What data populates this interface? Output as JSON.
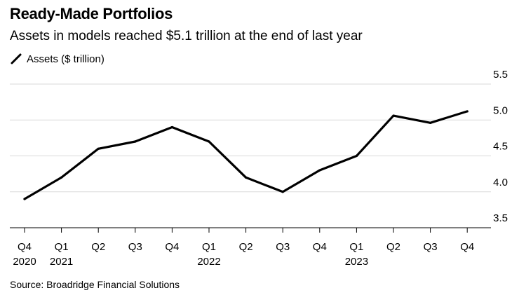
{
  "chart_data": {
    "type": "line",
    "title": "Ready-Made Portfolios",
    "subtitle": "Assets in models reached $5.1 trillion at the end of last year",
    "xlabel": "",
    "ylabel": "",
    "legend_position": "top-left",
    "categories": [
      "Q4",
      "Q1",
      "Q2",
      "Q3",
      "Q4",
      "Q1",
      "Q2",
      "Q3",
      "Q4",
      "Q1",
      "Q2",
      "Q3",
      "Q4"
    ],
    "year_labels": [
      "2020",
      "2021",
      "",
      "",
      "",
      "2022",
      "",
      "",
      "",
      "2023",
      "",
      "",
      ""
    ],
    "series": [
      {
        "name": "Assets ($ trillion)",
        "color": "#000000",
        "values": [
          3.9,
          4.2,
          4.6,
          4.7,
          4.9,
          4.7,
          4.2,
          4.0,
          4.3,
          4.5,
          5.06,
          4.96,
          5.12
        ]
      }
    ],
    "ylim": [
      3.5,
      5.5
    ],
    "yticks": [
      3.5,
      4.0,
      4.5,
      5.0,
      5.5
    ],
    "ytick_labels": [
      "3.5",
      "4.0",
      "4.5",
      "5.0",
      "5.5"
    ],
    "grid": true,
    "source": "Source: Broadridge Financial Solutions"
  }
}
